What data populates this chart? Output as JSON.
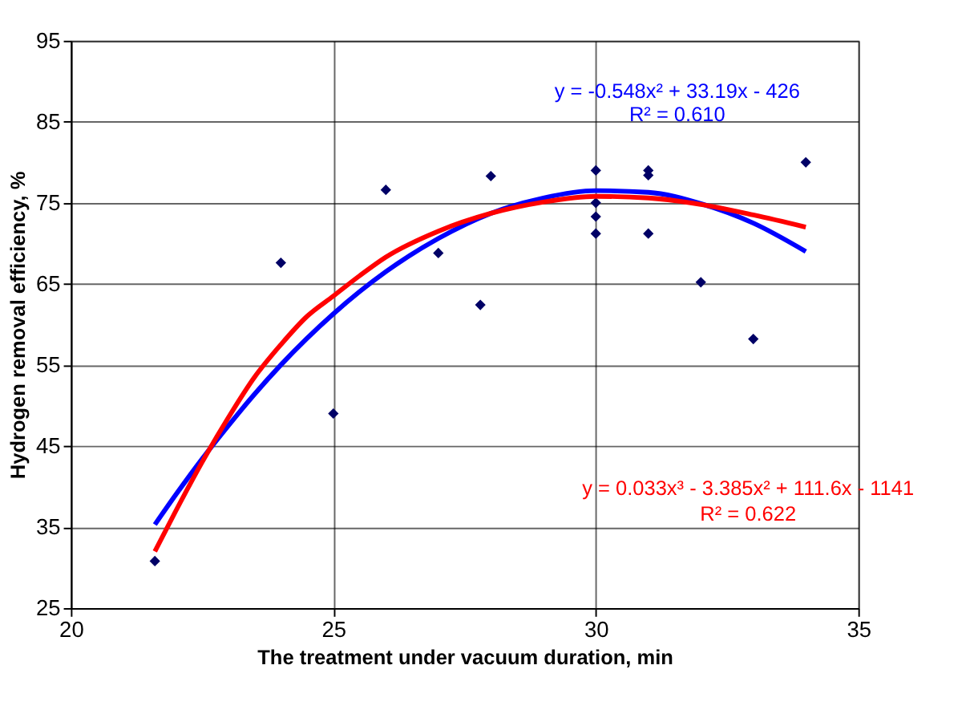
{
  "chart_data": {
    "type": "scatter",
    "xlabel": "The treatment under vacuum duration, min",
    "ylabel": "Hydrogen removal efficiency, %",
    "xlim": [
      20,
      35
    ],
    "xticks": [
      20,
      25,
      30,
      35
    ],
    "ylim": [
      25,
      95
    ],
    "yticks": [
      25,
      35,
      45,
      55,
      65,
      75,
      85,
      95
    ],
    "grid": true,
    "marker": "diamond",
    "series": [
      {
        "color": "#000066",
        "x": [
          21.6,
          24,
          25,
          26,
          27,
          27.8,
          28,
          30,
          30,
          30,
          30,
          31,
          31,
          31,
          32,
          33,
          34
        ],
        "values": [
          30.8,
          67.6,
          49,
          76.6,
          68.8,
          62.4,
          78.3,
          79,
          75,
          73.3,
          71.2,
          79,
          78.4,
          71.2,
          65.2,
          58.2,
          80
        ]
      },
      {
        "type": "line",
        "color": "#0000ff",
        "marker": "none",
        "x": [
          21.6,
          22,
          22.5,
          23,
          23.5,
          24,
          25,
          26,
          27,
          28,
          29,
          30,
          31,
          32,
          33,
          34
        ],
        "values": [
          35.3,
          39.0,
          43.4,
          47.5,
          51.4,
          55.0,
          61.3,
          66.5,
          70.6,
          73.7,
          75.6,
          76.5,
          76.3,
          74.9,
          72.5,
          69.0
        ]
      },
      {
        "type": "line",
        "color": "#ff0000",
        "marker": "none",
        "x": [
          21.6,
          22,
          22.5,
          23,
          23.5,
          24,
          24.5,
          25,
          25.5,
          26,
          27,
          28,
          29,
          30,
          31,
          32,
          33,
          34
        ],
        "values": [
          32,
          37,
          43,
          48.5,
          53.5,
          57.5,
          61,
          63.5,
          66,
          68.3,
          71.5,
          73.7,
          75.1,
          75.8,
          75.6,
          74.8,
          73.5,
          72
        ]
      }
    ],
    "annotations": [
      "y = -0.548x² + 33.19x - 426",
      "R² = 0.610",
      "y = 0.033x³ - 3.385x² + 111.6x - 1141",
      "R² = 0.622"
    ]
  }
}
